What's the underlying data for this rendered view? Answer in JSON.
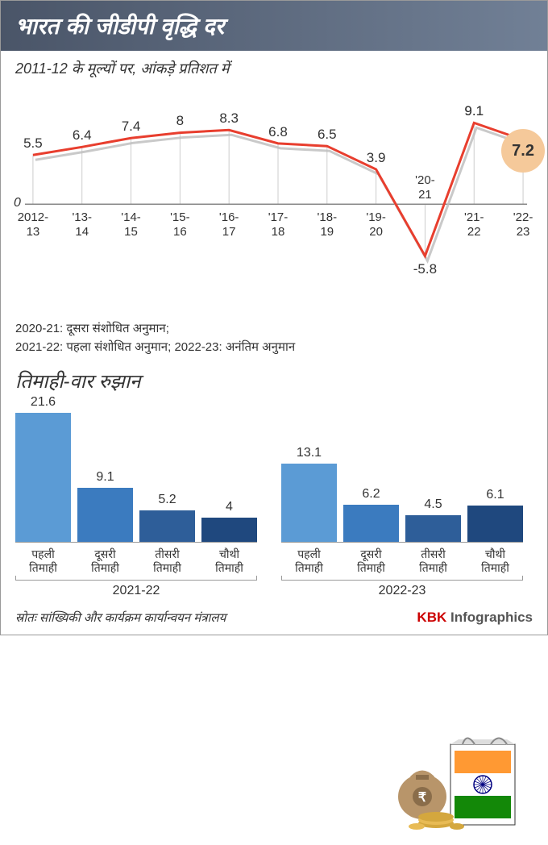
{
  "header": {
    "title": "भारत की जीडीपी वृद्धि दर"
  },
  "subheader": "2011-12 के मूल्यों पर, आंकड़े प्रतिशत में",
  "line_chart": {
    "type": "line",
    "zero_label": "0",
    "x_labels": [
      "2012-\n13",
      "'13-\n14",
      "'14-\n15",
      "'15-\n16",
      "'16-\n17",
      "'17-\n18",
      "'18-\n19",
      "'19-\n20",
      "'20-\n21",
      "'21-\n22",
      "'22-\n23"
    ],
    "values": [
      5.5,
      6.4,
      7.4,
      8.0,
      8.3,
      6.8,
      6.5,
      3.9,
      -5.8,
      9.1,
      7.2
    ],
    "line_color": "#e83e2e",
    "line_width": 3,
    "shadow_color": "#bbbbbb",
    "grid_color": "#cccccc",
    "axis_color": "#888888",
    "ylim": [
      -7,
      11
    ],
    "highlight_index": 10,
    "highlight_value": "7.2",
    "highlight_bg": "#f5c99a",
    "dip_label": "-5.8",
    "dip_xlabel": "'20-\n21"
  },
  "notes": {
    "line1": "2020-21: दूसरा संशोधित अनुमान;",
    "line2": "2021-22: पहला संशोधित अनुमान;  2022-23: अनंतिम अनुमान"
  },
  "quarterly": {
    "title": "तिमाही-वार रुझान",
    "max_value": 21.6,
    "groups": [
      {
        "year": "2021-22",
        "bars": [
          {
            "label": "पहली\nतिमाही",
            "value": 21.6,
            "color": "#5b9bd5"
          },
          {
            "label": "दूसरी\nतिमाही",
            "value": 9.1,
            "color": "#3b7bbf"
          },
          {
            "label": "तीसरी\nतिमाही",
            "value": 5.2,
            "color": "#2e5e99"
          },
          {
            "label": "चौथी\nतिमाही",
            "value": 4.0,
            "color": "#1f487e"
          }
        ]
      },
      {
        "year": "2022-23",
        "bars": [
          {
            "label": "पहली\nतिमाही",
            "value": 13.1,
            "color": "#5b9bd5"
          },
          {
            "label": "दूसरी\nतिमाही",
            "value": 6.2,
            "color": "#3b7bbf"
          },
          {
            "label": "तीसरी\nतिमाही",
            "value": 4.5,
            "color": "#2e5e99"
          },
          {
            "label": "चौथी\nतिमाही",
            "value": 6.1,
            "color": "#1f487e"
          }
        ]
      }
    ],
    "bar_area_height": 160
  },
  "source": "स्रोतः सांख्यिकी और कार्यक्रम कार्यान्वयन मंत्रालय",
  "brand": {
    "red": "KBK",
    "grey": " Infographics"
  }
}
